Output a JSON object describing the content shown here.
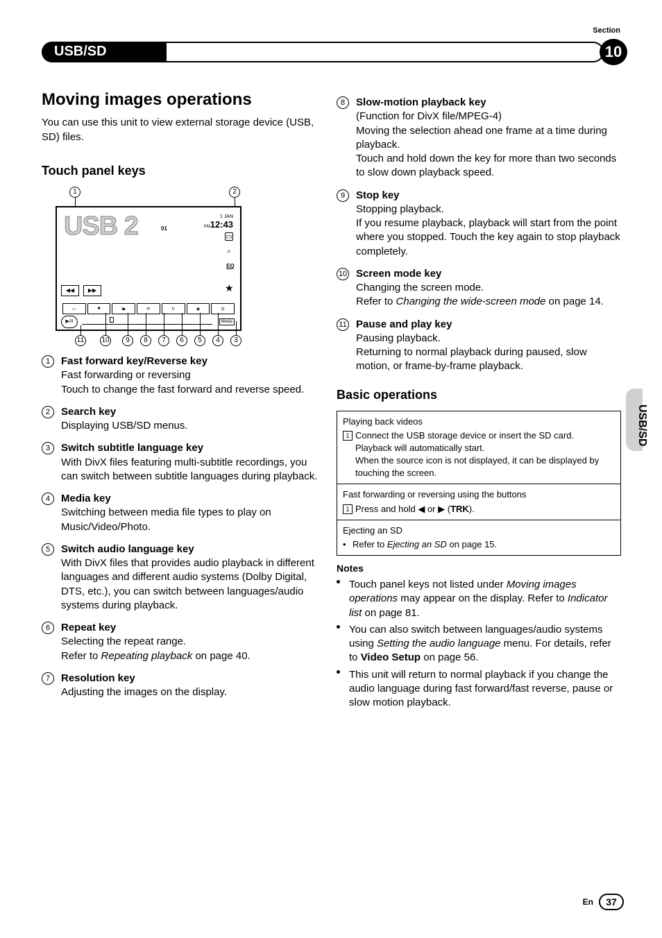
{
  "section": {
    "label": "Section",
    "number": "10",
    "title": "USB/SD"
  },
  "main_heading": "Moving images operations",
  "intro": "You can use this unit to view external storage device (USB, SD) files.",
  "subheading1": "Touch panel keys",
  "diagram": {
    "usb_label": "USB 2",
    "date_top": "1 JAN",
    "date_pm": "PM",
    "time": "12:43",
    "track": "01",
    "year": "01",
    "callouts": [
      "1",
      "2",
      "3",
      "4",
      "5",
      "6",
      "7",
      "8",
      "9",
      "10",
      "11"
    ],
    "icons": {
      "search": "⌕",
      "eq": "EQ",
      "star": "★",
      "rewind": "◀◀",
      "forward": "▶▶",
      "play": "▶/II",
      "media_label": "Media"
    }
  },
  "keys_left": [
    {
      "num": "1",
      "title": "Fast forward key/Reverse key",
      "desc": "Fast forwarding or reversing\nTouch to change the fast forward and reverse speed."
    },
    {
      "num": "2",
      "title": "Search key",
      "desc": "Displaying USB/SD menus."
    },
    {
      "num": "3",
      "title": "Switch subtitle language key",
      "desc": "With DivX files featuring multi-subtitle recordings, you can switch between subtitle languages during playback."
    },
    {
      "num": "4",
      "title": "Media key",
      "desc": "Switching between media file types to play on Music/Video/Photo."
    },
    {
      "num": "5",
      "title": "Switch audio language key",
      "desc": "With DivX files that provides audio playback in different languages and different audio systems (Dolby Digital, DTS, etc.), you can switch between languages/audio systems during playback."
    },
    {
      "num": "6",
      "title": "Repeat key",
      "desc": "Selecting the repeat range.\nRefer to ",
      "ref": "Repeating playback",
      "ref_suffix": " on page 40."
    },
    {
      "num": "7",
      "title": "Resolution key",
      "desc": "Adjusting the images on the display."
    }
  ],
  "keys_right": [
    {
      "num": "8",
      "title": "Slow-motion playback key",
      "desc": "(Function for DivX file/MPEG-4)\nMoving the selection ahead one frame at a time during playback.\nTouch and hold down the key for more than two seconds to slow down playback speed."
    },
    {
      "num": "9",
      "title": "Stop key",
      "desc": "Stopping playback.\nIf you resume playback, playback will start from the point where you stopped. Touch the key again to stop playback completely."
    },
    {
      "num": "10",
      "title": "Screen mode key",
      "desc": "Changing the screen mode.\nRefer to ",
      "ref": "Changing the wide-screen mode",
      "ref_suffix": " on page 14."
    },
    {
      "num": "11",
      "title": "Pause and play key",
      "desc": "Pausing playback.\nReturning to normal playback during paused, slow motion, or frame-by-frame playback."
    }
  ],
  "subheading2": "Basic operations",
  "ops": [
    {
      "title": "Playing back videos",
      "steps": [
        {
          "n": "1",
          "text": "Connect the USB storage device or insert the SD card.\nPlayback will automatically start.\nWhen the source icon is not displayed, it can be displayed by touching the screen."
        }
      ]
    },
    {
      "title": "Fast forwarding or reversing using the buttons",
      "steps": [
        {
          "n": "1",
          "text": "Press and hold ◀ or ▶ (",
          "bold": "TRK",
          "suffix": ")."
        }
      ]
    },
    {
      "title": "Ejecting an SD",
      "bullet": "Refer to ",
      "ref": "Ejecting an SD",
      "ref_suffix": " on page 15."
    }
  ],
  "notes_title": "Notes",
  "notes": [
    {
      "text": "Touch panel keys not listed under ",
      "ref": "Moving images operations",
      "mid": " may appear on the display. Refer to ",
      "ref2": "Indicator list",
      "suffix": " on page 81."
    },
    {
      "text": "You can also switch between languages/audio systems using ",
      "bold": "Video Setup",
      "mid": " menu. For details, refer to ",
      "ref": "Setting the audio language",
      "suffix": " on page 56."
    },
    {
      "text": "This unit will return to normal playback if you change the audio language during fast forward/fast reverse, pause or slow motion playback."
    }
  ],
  "side_tab": "USB/SD",
  "footer": {
    "lang": "En",
    "page": "37"
  }
}
